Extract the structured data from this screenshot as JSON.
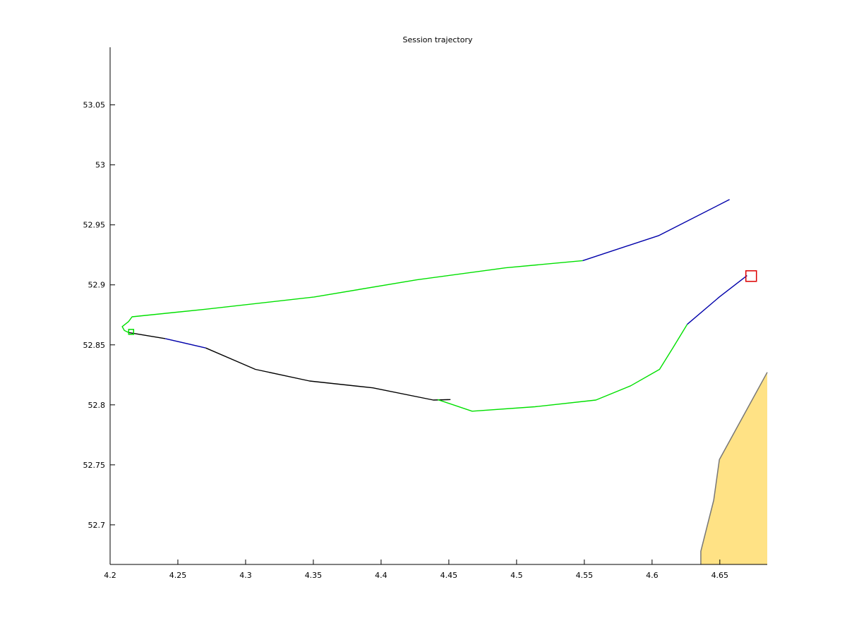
{
  "chart_data": {
    "type": "line",
    "title": "Session trajectory",
    "xlabel": "",
    "ylabel": "",
    "xlim": [
      4.2,
      4.685
    ],
    "ylim": [
      52.667,
      53.098
    ],
    "grid": false,
    "x_ticks": [
      {
        "value": 4.2,
        "label": "4.2"
      },
      {
        "value": 4.25,
        "label": "4.25"
      },
      {
        "value": 4.3,
        "label": "4.3"
      },
      {
        "value": 4.35,
        "label": "4.35"
      },
      {
        "value": 4.4,
        "label": "4.4"
      },
      {
        "value": 4.45,
        "label": "4.45"
      },
      {
        "value": 4.5,
        "label": "4.5"
      },
      {
        "value": 4.55,
        "label": "4.55"
      },
      {
        "value": 4.6,
        "label": "4.6"
      },
      {
        "value": 4.65,
        "label": "4.65"
      }
    ],
    "y_ticks": [
      {
        "value": 52.7,
        "label": "52.7"
      },
      {
        "value": 52.75,
        "label": "52.75"
      },
      {
        "value": 52.8,
        "label": "52.8"
      },
      {
        "value": 52.85,
        "label": "52.85"
      },
      {
        "value": 52.9,
        "label": "52.9"
      },
      {
        "value": 52.95,
        "label": "52.95"
      },
      {
        "value": 53.0,
        "label": "53"
      },
      {
        "value": 53.05,
        "label": "53.05"
      }
    ],
    "colors": {
      "green": "#00e000",
      "blue": "#0000aa",
      "black": "#000000",
      "land_fill": "#ffe285",
      "land_edge": "#777777",
      "end_marker": "#dd0000"
    },
    "land_polygon": [
      {
        "x": 4.636,
        "y": 52.667
      },
      {
        "x": 4.636,
        "y": 52.678
      },
      {
        "x": 4.6455,
        "y": 52.7206
      },
      {
        "x": 4.6497,
        "y": 52.7544
      },
      {
        "x": 4.685,
        "y": 52.8271
      },
      {
        "x": 4.685,
        "y": 52.667
      }
    ],
    "segments": [
      {
        "color": "black",
        "points": [
          {
            "x": 4.2136,
            "y": 52.8603
          },
          {
            "x": 4.2407,
            "y": 52.8552
          }
        ]
      },
      {
        "color": "blue",
        "points": [
          {
            "x": 4.2407,
            "y": 52.8552
          },
          {
            "x": 4.2706,
            "y": 52.8474
          }
        ]
      },
      {
        "color": "black",
        "points": [
          {
            "x": 4.2706,
            "y": 52.8474
          },
          {
            "x": 4.3072,
            "y": 52.8296
          },
          {
            "x": 4.3472,
            "y": 52.8199
          },
          {
            "x": 4.3939,
            "y": 52.8142
          },
          {
            "x": 4.4386,
            "y": 52.804
          },
          {
            "x": 4.4512,
            "y": 52.8044
          }
        ]
      },
      {
        "color": "green",
        "points": [
          {
            "x": 4.4417,
            "y": 52.8044
          },
          {
            "x": 4.4672,
            "y": 52.7947
          },
          {
            "x": 4.5135,
            "y": 52.7984
          },
          {
            "x": 4.5585,
            "y": 52.804
          },
          {
            "x": 4.5842,
            "y": 52.8159
          },
          {
            "x": 4.6055,
            "y": 52.8296
          },
          {
            "x": 4.615,
            "y": 52.8468
          },
          {
            "x": 4.6259,
            "y": 52.8671
          }
        ]
      },
      {
        "color": "blue",
        "points": [
          {
            "x": 4.6259,
            "y": 52.8671
          },
          {
            "x": 4.6498,
            "y": 52.89
          },
          {
            "x": 4.6701,
            "y": 52.9077
          }
        ]
      },
      {
        "color": "green",
        "points": [
          {
            "x": 4.2136,
            "y": 52.8603
          },
          {
            "x": 4.2105,
            "y": 52.862
          },
          {
            "x": 4.2089,
            "y": 52.8652
          },
          {
            "x": 4.2136,
            "y": 52.8694
          },
          {
            "x": 4.2162,
            "y": 52.8734
          },
          {
            "x": 4.2704,
            "y": 52.8797
          },
          {
            "x": 4.3506,
            "y": 52.8899
          },
          {
            "x": 4.4264,
            "y": 52.9042
          },
          {
            "x": 4.4919,
            "y": 52.9142
          },
          {
            "x": 4.5488,
            "y": 52.9202
          }
        ]
      },
      {
        "color": "blue",
        "points": [
          {
            "x": 4.5488,
            "y": 52.9202
          },
          {
            "x": 4.6051,
            "y": 52.9411
          },
          {
            "x": 4.6572,
            "y": 52.9711
          }
        ]
      }
    ],
    "markers": [
      {
        "x": 4.2155,
        "y": 52.8608,
        "color": "green",
        "shape": "square",
        "size": 7
      },
      {
        "x": 4.6731,
        "y": 52.9073,
        "color": "end_marker",
        "shape": "square",
        "size": 15
      }
    ]
  }
}
